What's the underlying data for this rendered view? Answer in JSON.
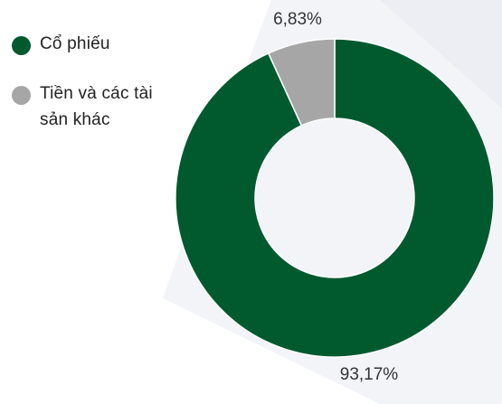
{
  "chart_data": {
    "type": "pie",
    "donut": true,
    "categories": [
      "Cổ phiếu",
      "Tiền và các tài sản khác"
    ],
    "values": [
      93.17,
      6.83
    ],
    "data_labels": [
      "93,17%",
      "6,83%"
    ],
    "colors": [
      "#005a2e",
      "#a6a6a6"
    ],
    "legend_position": "left"
  },
  "legend": {
    "items": [
      {
        "label": "Cổ phiếu",
        "color": "#005a2e"
      },
      {
        "label": "Tiền và các tài sản khác",
        "color": "#a6a6a6"
      }
    ]
  }
}
